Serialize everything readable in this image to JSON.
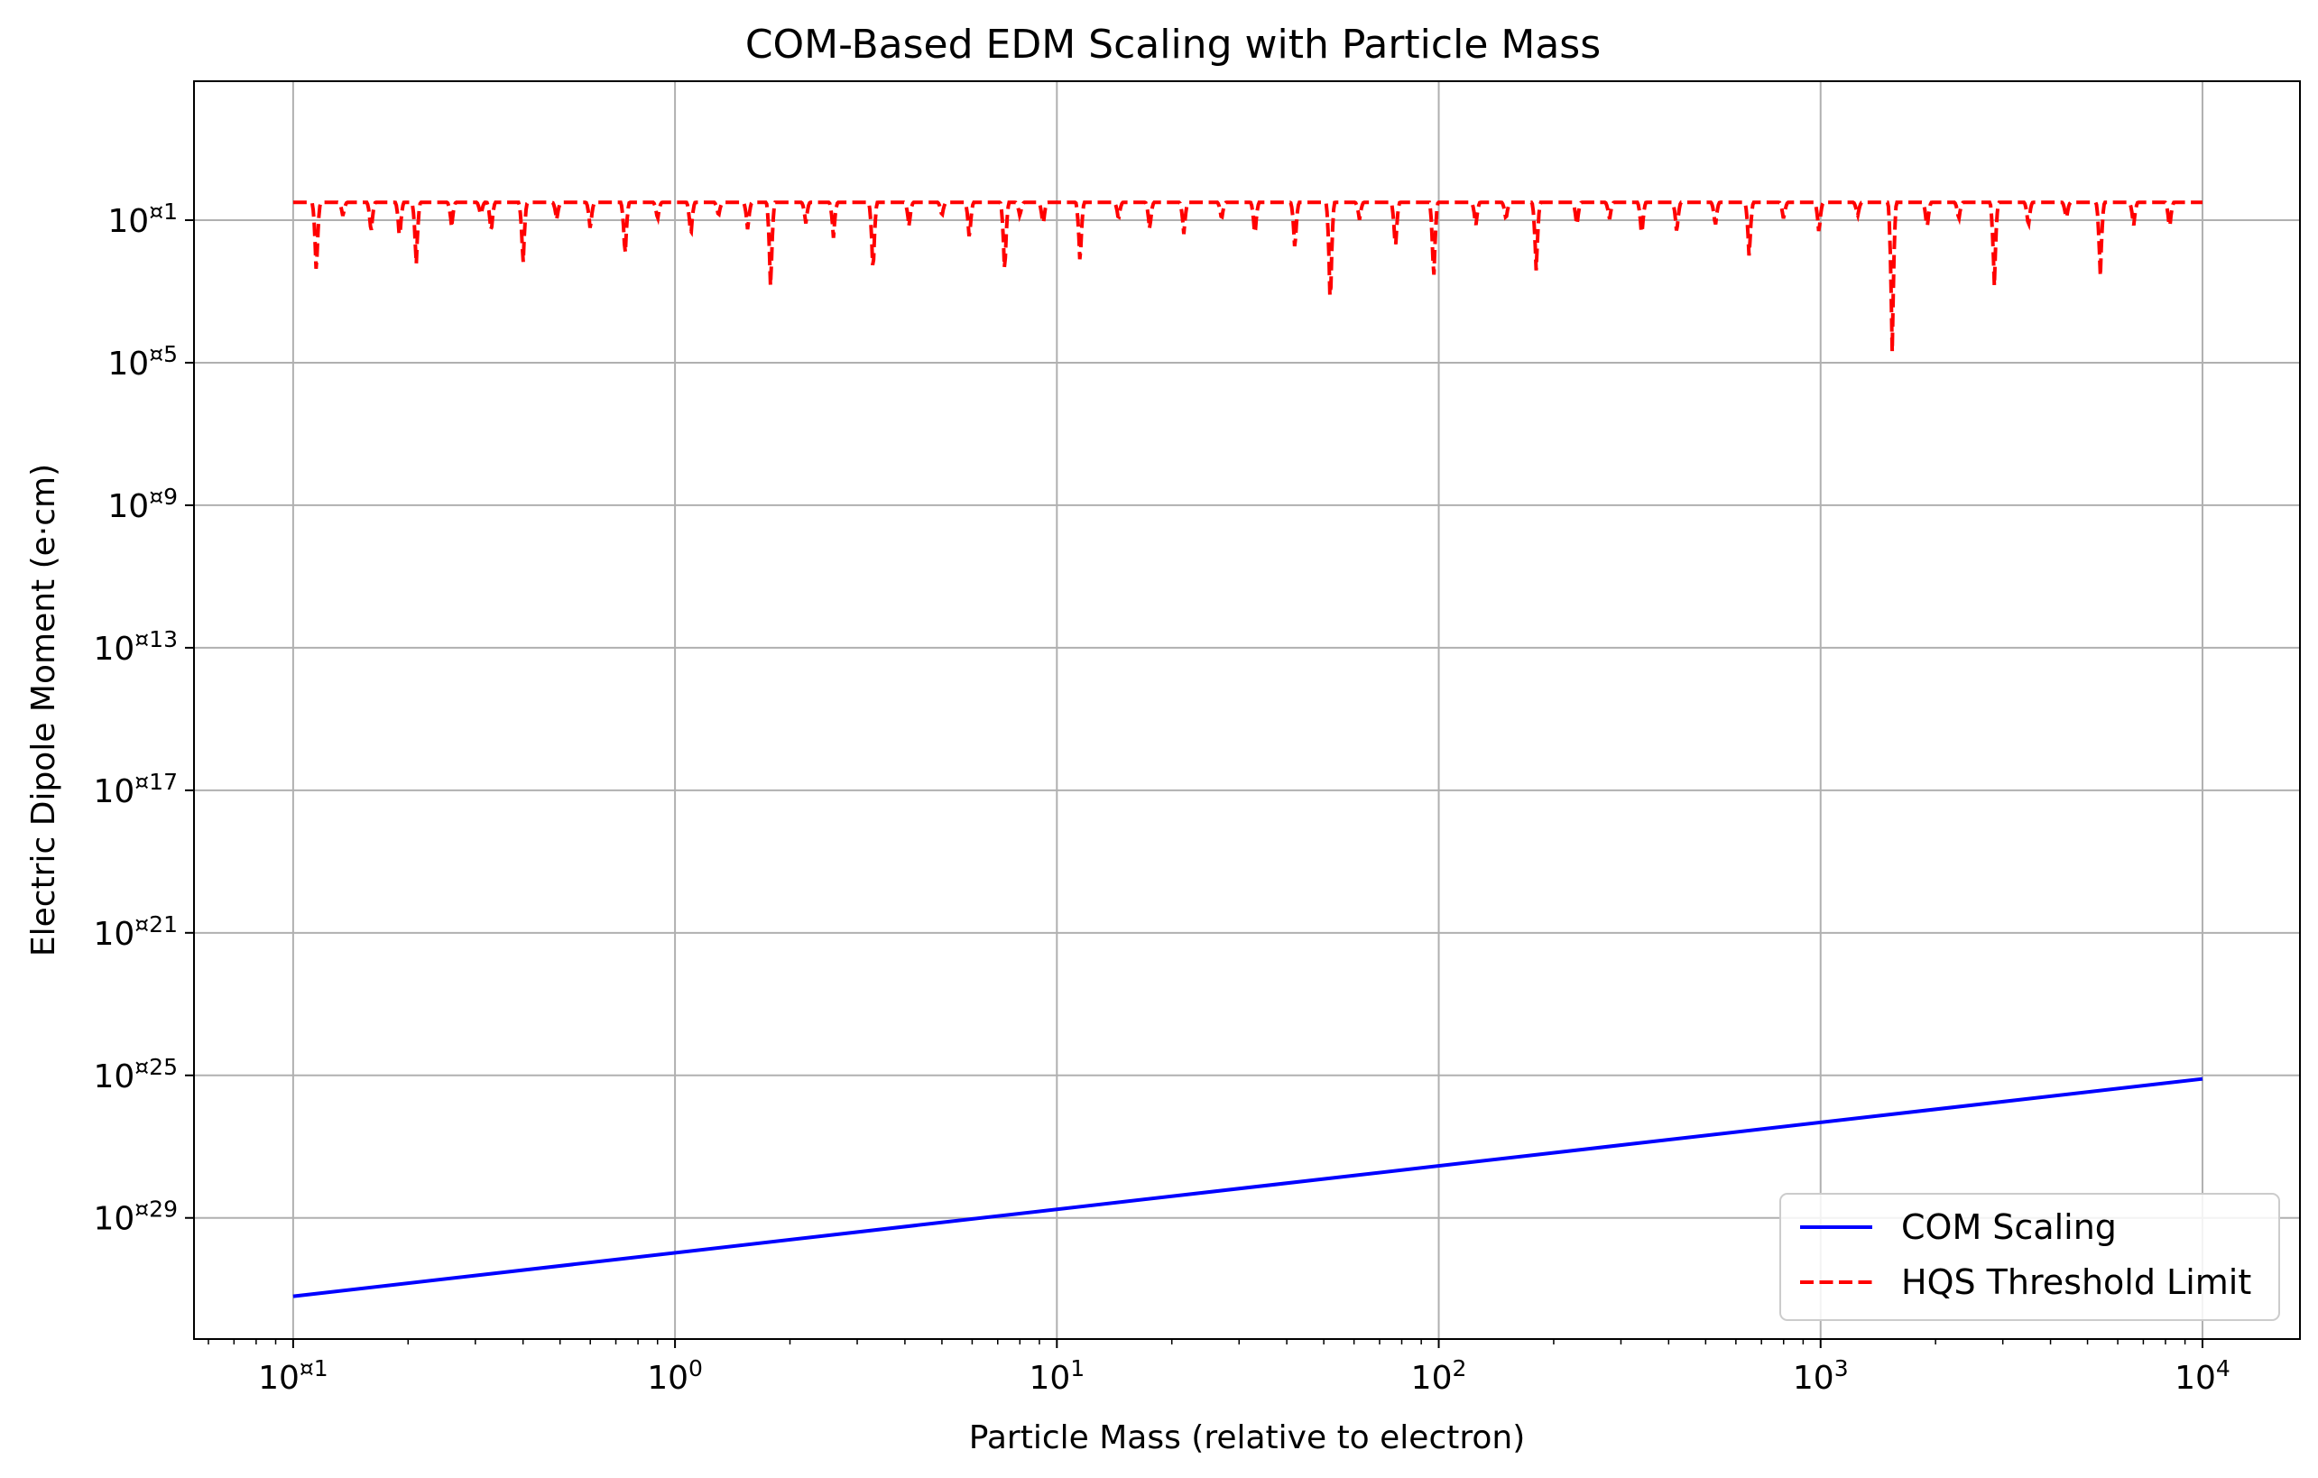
{
  "chart_data": {
    "type": "line",
    "title": "COM-Based EDM Scaling with Particle Mass",
    "xlabel": "Particle Mass (relative to electron)",
    "ylabel": "Electric Dipole Moment (e·cm)",
    "xscale": "log",
    "yscale": "log",
    "xlim": [
      0.055,
      18000
    ],
    "ylim_exponent": [
      -32.4,
      2.9
    ],
    "x_tick_labels": [
      {
        "value": 0.1,
        "base": "10",
        "exp": "¤1"
      },
      {
        "value": 1,
        "base": "10",
        "exp": "0"
      },
      {
        "value": 10,
        "base": "10",
        "exp": "1"
      },
      {
        "value": 100,
        "base": "10",
        "exp": "2"
      },
      {
        "value": 1000,
        "base": "10",
        "exp": "3"
      },
      {
        "value": 10000,
        "base": "10",
        "exp": "4"
      }
    ],
    "y_tick_labels": [
      {
        "exponent": -1,
        "base": "10",
        "exp": "¤1"
      },
      {
        "exponent": -5,
        "base": "10",
        "exp": "¤5"
      },
      {
        "exponent": -9,
        "base": "10",
        "exp": "¤9"
      },
      {
        "exponent": -13,
        "base": "10",
        "exp": "¤13"
      },
      {
        "exponent": -17,
        "base": "10",
        "exp": "¤17"
      },
      {
        "exponent": -21,
        "base": "10",
        "exp": "¤21"
      },
      {
        "exponent": -25,
        "base": "10",
        "exp": "¤25"
      },
      {
        "exponent": -29,
        "base": "10",
        "exp": "¤29"
      }
    ],
    "grid": true,
    "legend_position": "lower-right",
    "series": [
      {
        "name": "COM Scaling",
        "color": "#0000ff",
        "style": "solid",
        "x": [
          0.1,
          10000
        ],
        "y_log10": [
          -31.2,
          -25.1
        ]
      },
      {
        "name": "HQS Threshold Limit",
        "color": "#ff0000",
        "style": "dashed",
        "x_range": [
          0.1,
          10000
        ],
        "y_log10_baseline": -0.5,
        "dips": [
          [
            0.115,
            -2.6
          ],
          [
            0.135,
            -0.9
          ],
          [
            0.16,
            -1.4
          ],
          [
            0.19,
            -1.6
          ],
          [
            0.21,
            -2.3
          ],
          [
            0.26,
            -1.2
          ],
          [
            0.31,
            -0.9
          ],
          [
            0.33,
            -1.4
          ],
          [
            0.4,
            -2.3
          ],
          [
            0.49,
            -1.0
          ],
          [
            0.6,
            -1.3
          ],
          [
            0.74,
            -2.1
          ],
          [
            0.9,
            -1.0
          ],
          [
            1.1,
            -1.5
          ],
          [
            1.3,
            -0.9
          ],
          [
            1.55,
            -1.3
          ],
          [
            1.78,
            -3.0
          ],
          [
            2.2,
            -1.1
          ],
          [
            2.6,
            -1.5
          ],
          [
            3.3,
            -2.6
          ],
          [
            4.1,
            -1.2
          ],
          [
            5.0,
            -0.9
          ],
          [
            5.9,
            -1.6
          ],
          [
            7.3,
            -2.6
          ],
          [
            8.0,
            -0.9
          ],
          [
            9.2,
            -1.2
          ],
          [
            11.5,
            -2.3
          ],
          [
            14.5,
            -1.0
          ],
          [
            17.5,
            -1.3
          ],
          [
            21.5,
            -1.4
          ],
          [
            27,
            -1.0
          ],
          [
            33,
            -1.5
          ],
          [
            42,
            -1.9
          ],
          [
            52,
            -3.6
          ],
          [
            62,
            -1.0
          ],
          [
            77,
            -1.9
          ],
          [
            97,
            -2.8
          ],
          [
            125,
            -1.2
          ],
          [
            150,
            -1.0
          ],
          [
            180,
            -2.5
          ],
          [
            230,
            -1.2
          ],
          [
            280,
            -1.0
          ],
          [
            340,
            -1.5
          ],
          [
            420,
            -1.4
          ],
          [
            530,
            -1.2
          ],
          [
            650,
            -2.1
          ],
          [
            800,
            -1.0
          ],
          [
            990,
            -1.4
          ],
          [
            1250,
            -0.9
          ],
          [
            1540,
            -4.7
          ],
          [
            1900,
            -1.3
          ],
          [
            2300,
            -1.0
          ],
          [
            2850,
            -2.9
          ],
          [
            3500,
            -1.2
          ],
          [
            4400,
            -1.0
          ],
          [
            5400,
            -2.6
          ],
          [
            6600,
            -1.2
          ],
          [
            8200,
            -1.3
          ]
        ]
      }
    ]
  }
}
